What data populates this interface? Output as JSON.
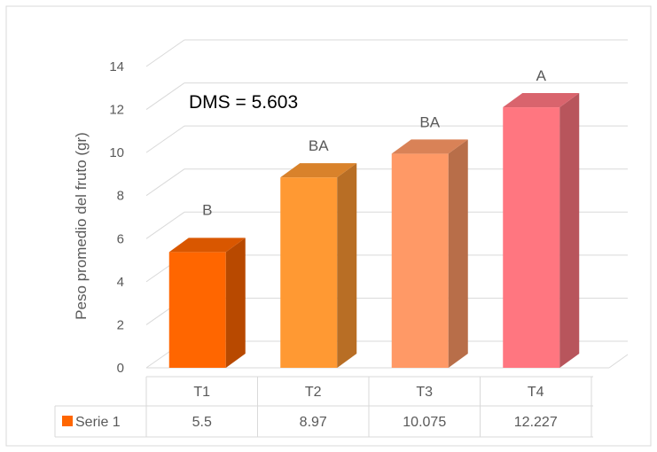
{
  "chart_data": {
    "type": "bar",
    "categories": [
      "T1",
      "T2",
      "T3",
      "T4"
    ],
    "series": [
      {
        "name": "Serie 1",
        "values": [
          5.5,
          8.97,
          10.075,
          12.227
        ]
      }
    ],
    "value_labels": [
      "5.5",
      "8.97",
      "10.075",
      "12.227"
    ],
    "bar_colors": [
      "#ff6600",
      "#ff9933",
      "#ff9966",
      "#ff7680"
    ],
    "significance_letters": [
      "B",
      "BA",
      "BA",
      "A"
    ],
    "annotation": "DMS = 5.603",
    "ylabel": "Peso promedio del fruto (gr)",
    "xlabel": "",
    "title": "",
    "ylim": [
      0,
      14
    ],
    "yticks": [
      0,
      2,
      4,
      6,
      8,
      10,
      12,
      14
    ],
    "grid": true,
    "style": "3d-column",
    "legend": "data-table-below"
  }
}
